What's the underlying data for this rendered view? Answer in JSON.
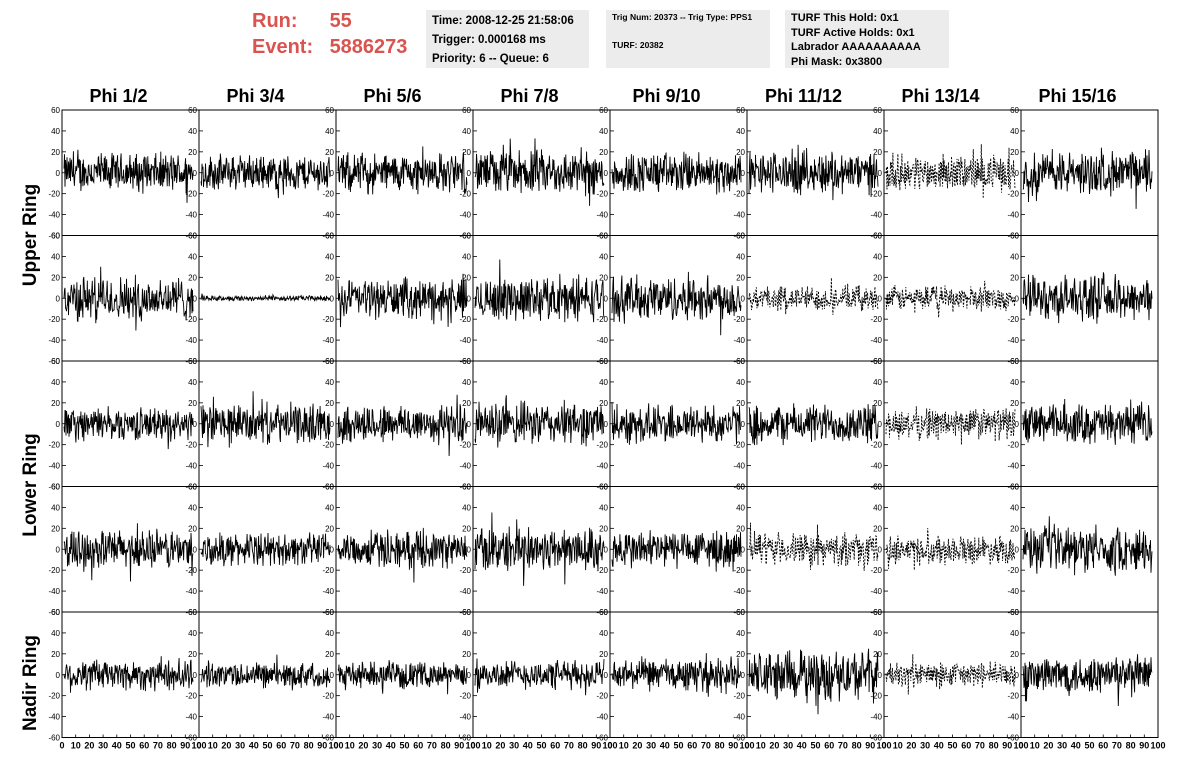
{
  "header": {
    "run_label": "Run:",
    "run_value": "55",
    "event_label": "Event:",
    "event_value": "5886273",
    "info1": [
      "Time: 2008-12-25 21:58:06",
      "Trigger: 0.000168 ms",
      "Priority: 6 -- Queue: 6"
    ],
    "info2": [
      "Trig Num: 20373 -- Trig Type: PPS1",
      "TURF: 20382"
    ],
    "info3": [
      "TURF This Hold: 0x1",
      "TURF Active Holds: 0x1",
      "Labrador AAAAAAAAAA",
      "Phi Mask: 0x3800"
    ]
  },
  "columns": [
    "Phi 1/2",
    "Phi 3/4",
    "Phi 5/6",
    "Phi 7/8",
    "Phi 9/10",
    "Phi 11/12",
    "Phi 13/14",
    "Phi 15/16"
  ],
  "ring_labels": [
    "Upper Ring",
    "Lower Ring",
    "Nadir Ring"
  ],
  "colors": {
    "header_red": "#d9534f",
    "trace": "#000000",
    "info_bg": "#ececec"
  },
  "chart_data": {
    "type": "line",
    "panel_rows": 5,
    "panel_cols": 8,
    "xlim": [
      0,
      100
    ],
    "ylim": [
      -60,
      60
    ],
    "x_ticks": [
      "0",
      "10",
      "20",
      "30",
      "40",
      "50",
      "60",
      "70",
      "80",
      "90",
      "100"
    ],
    "y_ticks": [
      "-60",
      "-40",
      "-20",
      "0",
      "20",
      "40",
      "60"
    ],
    "grid": false,
    "notes": "Waveform traces per panel; amplitude ~±25 typical. Dashed traces in Phi 11/12 and Phi 13/14 columns for several rows. Row 2 Phi 3/4 trace is flat (~±3).",
    "panels": [
      {
        "row": 0,
        "col": 0,
        "amp": 22,
        "style": "solid"
      },
      {
        "row": 0,
        "col": 1,
        "amp": 20,
        "style": "solid"
      },
      {
        "row": 0,
        "col": 2,
        "amp": 22,
        "style": "solid"
      },
      {
        "row": 0,
        "col": 3,
        "amp": 25,
        "style": "solid"
      },
      {
        "row": 0,
        "col": 4,
        "amp": 23,
        "style": "solid"
      },
      {
        "row": 0,
        "col": 5,
        "amp": 24,
        "style": "solid"
      },
      {
        "row": 0,
        "col": 6,
        "amp": 20,
        "style": "dashed"
      },
      {
        "row": 0,
        "col": 7,
        "amp": 24,
        "style": "solid"
      },
      {
        "row": 1,
        "col": 0,
        "amp": 25,
        "style": "solid"
      },
      {
        "row": 1,
        "col": 1,
        "amp": 3,
        "style": "solid"
      },
      {
        "row": 1,
        "col": 2,
        "amp": 22,
        "style": "solid"
      },
      {
        "row": 1,
        "col": 3,
        "amp": 25,
        "style": "solid"
      },
      {
        "row": 1,
        "col": 4,
        "amp": 25,
        "style": "solid"
      },
      {
        "row": 1,
        "col": 5,
        "amp": 14,
        "style": "dashed"
      },
      {
        "row": 1,
        "col": 6,
        "amp": 14,
        "style": "dashed"
      },
      {
        "row": 1,
        "col": 7,
        "amp": 25,
        "style": "solid"
      },
      {
        "row": 2,
        "col": 0,
        "amp": 18,
        "style": "solid"
      },
      {
        "row": 2,
        "col": 1,
        "amp": 22,
        "style": "solid"
      },
      {
        "row": 2,
        "col": 2,
        "amp": 22,
        "style": "solid"
      },
      {
        "row": 2,
        "col": 3,
        "amp": 24,
        "style": "solid"
      },
      {
        "row": 2,
        "col": 4,
        "amp": 22,
        "style": "solid"
      },
      {
        "row": 2,
        "col": 5,
        "amp": 22,
        "style": "solid"
      },
      {
        "row": 2,
        "col": 6,
        "amp": 18,
        "style": "dashed"
      },
      {
        "row": 2,
        "col": 7,
        "amp": 22,
        "style": "solid"
      },
      {
        "row": 3,
        "col": 0,
        "amp": 22,
        "style": "solid"
      },
      {
        "row": 3,
        "col": 1,
        "amp": 18,
        "style": "solid"
      },
      {
        "row": 3,
        "col": 2,
        "amp": 20,
        "style": "solid"
      },
      {
        "row": 3,
        "col": 3,
        "amp": 25,
        "style": "solid"
      },
      {
        "row": 3,
        "col": 4,
        "amp": 22,
        "style": "solid"
      },
      {
        "row": 3,
        "col": 5,
        "amp": 18,
        "style": "dashed"
      },
      {
        "row": 3,
        "col": 6,
        "amp": 16,
        "style": "dashed"
      },
      {
        "row": 3,
        "col": 7,
        "amp": 25,
        "style": "solid"
      },
      {
        "row": 4,
        "col": 0,
        "amp": 18,
        "style": "solid"
      },
      {
        "row": 4,
        "col": 1,
        "amp": 14,
        "style": "solid"
      },
      {
        "row": 4,
        "col": 2,
        "amp": 14,
        "style": "solid"
      },
      {
        "row": 4,
        "col": 3,
        "amp": 16,
        "style": "solid"
      },
      {
        "row": 4,
        "col": 4,
        "amp": 18,
        "style": "solid"
      },
      {
        "row": 4,
        "col": 5,
        "amp": 28,
        "style": "solid"
      },
      {
        "row": 4,
        "col": 6,
        "amp": 14,
        "style": "dashed"
      },
      {
        "row": 4,
        "col": 7,
        "amp": 22,
        "style": "solid"
      }
    ]
  }
}
